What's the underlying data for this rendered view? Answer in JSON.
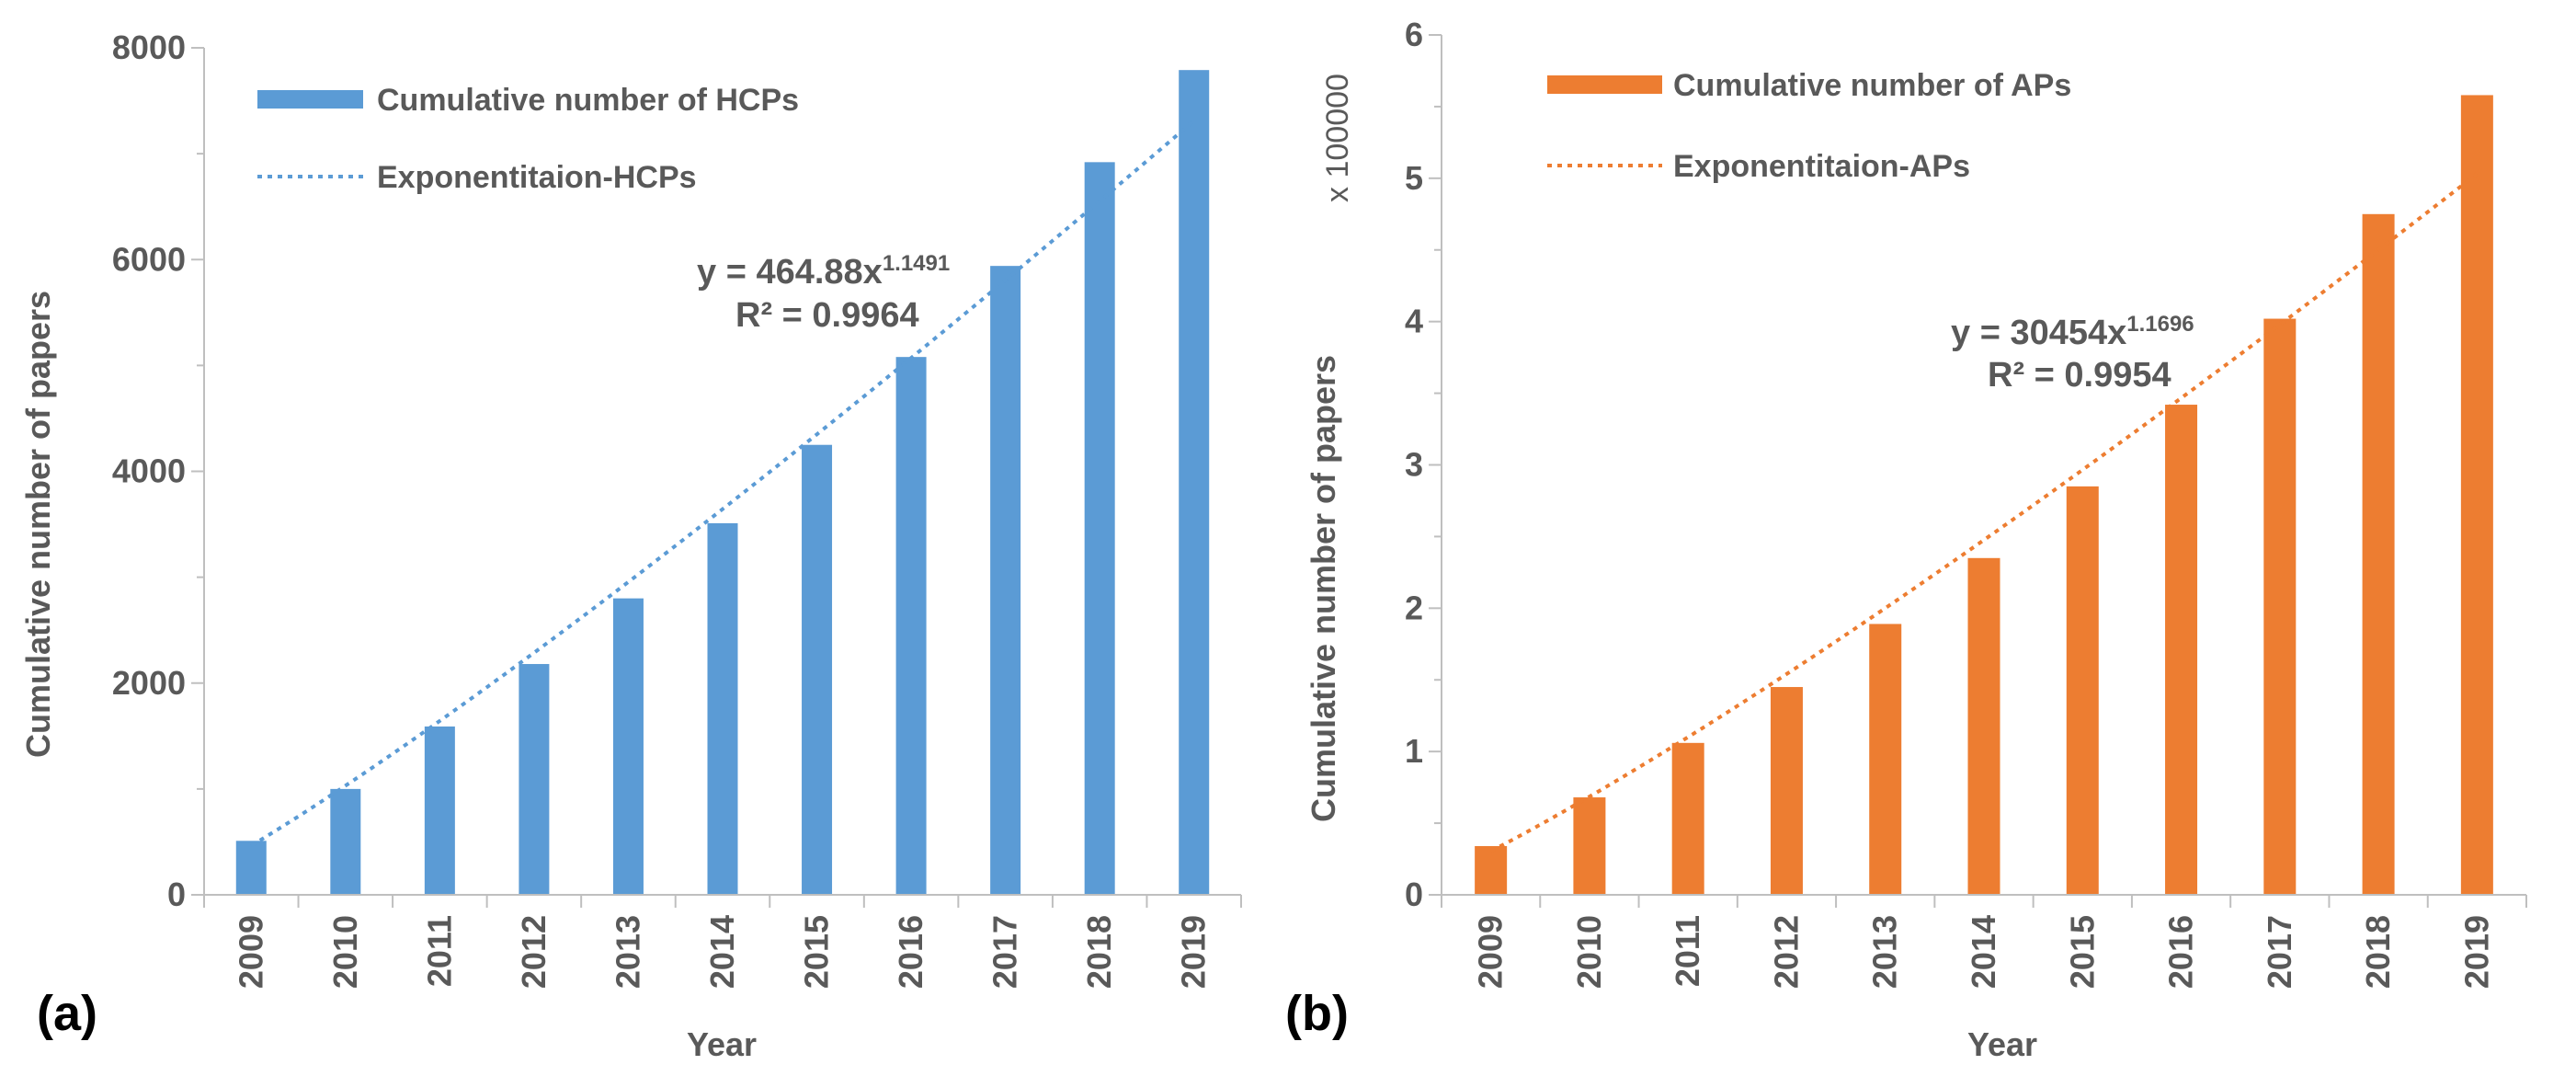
{
  "chart_data": [
    {
      "type": "bar",
      "panel_label": "(a)",
      "categories": [
        "2009",
        "2010",
        "2011",
        "2012",
        "2013",
        "2014",
        "2015",
        "2016",
        "2017",
        "2018",
        "2019"
      ],
      "series": [
        {
          "name": "Cumulative number of HCPs",
          "values": [
            510,
            1000,
            1590,
            2180,
            2800,
            3510,
            4250,
            5080,
            5940,
            6920,
            7790
          ]
        }
      ],
      "trendline": {
        "name": "Exponentitaion-HCPs",
        "a": 464.88,
        "b": 1.1491,
        "kind": "power"
      },
      "equation": {
        "prefix": "y = 464.88x",
        "exponent": "1.1491",
        "r2": "R² = 0.9964"
      },
      "xlabel": "Year",
      "ylabel": "Cumulative number of papers",
      "ylim": [
        0,
        8000
      ],
      "yticks": [
        "0",
        "2000",
        "4000",
        "6000",
        "8000"
      ],
      "color": "#5B9BD5",
      "legend_position": "top-left"
    },
    {
      "type": "bar",
      "panel_label": "(b)",
      "categories": [
        "2009",
        "2010",
        "2011",
        "2012",
        "2013",
        "2014",
        "2015",
        "2016",
        "2017",
        "2018",
        "2019"
      ],
      "series": [
        {
          "name": "Cumulative number of APs",
          "values": [
            0.34,
            0.68,
            1.06,
            1.45,
            1.89,
            2.35,
            2.85,
            3.42,
            4.02,
            4.75,
            5.58
          ]
        }
      ],
      "trendline": {
        "name": "Exponentitaion-APs",
        "a": 0.30454,
        "b": 1.1696,
        "kind": "power"
      },
      "equation": {
        "prefix": "y = 30454x",
        "exponent": "1.1696",
        "r2": "R² = 0.9954"
      },
      "xlabel": "Year",
      "ylabel": "Cumulative number of papers",
      "ylim": [
        0,
        6
      ],
      "yticks": [
        "0",
        "1",
        "2",
        "3",
        "4",
        "5",
        "6"
      ],
      "multiplier": "x 100000",
      "color": "#ED7D31",
      "legend_position": "top-left"
    }
  ]
}
